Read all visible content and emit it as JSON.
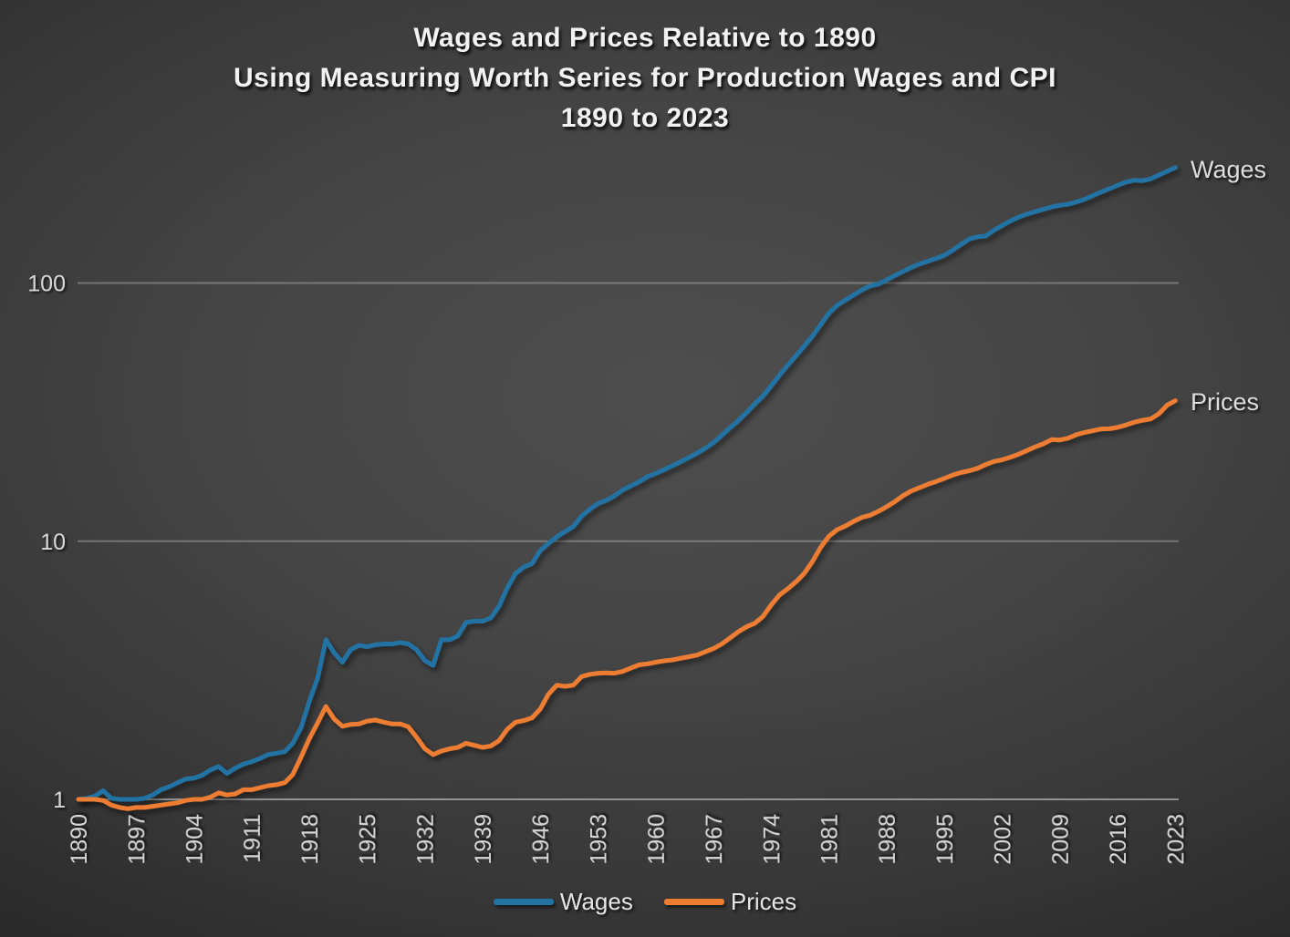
{
  "title": {
    "line1": "Wages and Prices Relative to 1890",
    "line2": "Using Measuring Worth Series for Production Wages and CPI",
    "line3": "1890 to 2023"
  },
  "colors": {
    "wages": "#2273A3",
    "prices": "#ED7D31",
    "tick_text": "#D6D6D6",
    "title_text": "#F2F2F2",
    "gridline": "rgba(255,255,255,0.28)",
    "baseline": "rgba(255,255,255,0.45)"
  },
  "legend": [
    {
      "label": "Wages",
      "color": "#2273A3"
    },
    {
      "label": "Prices",
      "color": "#ED7D31"
    }
  ],
  "series_end_labels": {
    "wages": "Wages",
    "prices": "Prices"
  },
  "chart_data": {
    "type": "line",
    "title": "Wages and Prices Relative to 1890 — Using Measuring Worth Series for Production Wages and CPI — 1890 to 2023",
    "xlabel": "",
    "ylabel": "",
    "y_scale": "log10",
    "ylim": [
      1,
      300
    ],
    "x_start": 1890,
    "x_end": 2023,
    "x_step_years": 1,
    "x_tick_labels": [
      "1890",
      "1897",
      "1904",
      "1911",
      "1918",
      "1925",
      "1932",
      "1939",
      "1946",
      "1953",
      "1960",
      "1967",
      "1974",
      "1981",
      "1988",
      "1995",
      "2002",
      "2009",
      "2016",
      "2023"
    ],
    "y_tick_labels": [
      "1",
      "10",
      "100"
    ],
    "y_gridlines": [
      1,
      10,
      100
    ],
    "legend_position": "bottom-center",
    "grid": "horizontal-only",
    "series": [
      {
        "name": "Wages",
        "color": "#2273A3",
        "values": [
          1.0,
          1.01,
          1.03,
          1.08,
          1.01,
          1.0,
          1.0,
          1.0,
          1.01,
          1.04,
          1.09,
          1.12,
          1.16,
          1.2,
          1.21,
          1.24,
          1.3,
          1.34,
          1.26,
          1.32,
          1.37,
          1.4,
          1.44,
          1.49,
          1.51,
          1.53,
          1.65,
          1.9,
          2.4,
          2.95,
          4.15,
          3.7,
          3.4,
          3.8,
          3.95,
          3.9,
          3.97,
          4.0,
          4.0,
          4.05,
          4.0,
          3.8,
          3.45,
          3.3,
          4.15,
          4.15,
          4.3,
          4.85,
          4.9,
          4.9,
          5.05,
          5.6,
          6.6,
          7.5,
          7.95,
          8.2,
          9.2,
          9.8,
          10.4,
          10.9,
          11.4,
          12.5,
          13.3,
          14.0,
          14.4,
          15.0,
          15.8,
          16.4,
          17.0,
          17.8,
          18.3,
          18.9,
          19.6,
          20.3,
          21.1,
          21.9,
          22.9,
          24.1,
          25.7,
          27.5,
          29.3,
          31.5,
          34.0,
          36.5,
          40.0,
          44.0,
          48.0,
          52.3,
          57.0,
          62.3,
          69.0,
          76.5,
          82.0,
          86.0,
          90.0,
          94.0,
          97.5,
          99.0,
          103,
          107,
          111,
          115,
          118.5,
          121.5,
          124.5,
          128,
          134,
          141,
          148,
          151,
          152,
          160,
          167,
          174,
          180,
          185,
          189,
          193,
          197,
          200,
          202,
          206,
          211,
          218,
          225,
          232,
          239,
          246,
          250,
          249,
          253,
          262,
          271,
          280
        ]
      },
      {
        "name": "Prices",
        "color": "#ED7D31",
        "values": [
          1.0,
          1.0,
          1.0,
          0.99,
          0.95,
          0.93,
          0.92,
          0.93,
          0.93,
          0.94,
          0.95,
          0.96,
          0.97,
          0.99,
          1.0,
          1.0,
          1.02,
          1.06,
          1.04,
          1.05,
          1.09,
          1.09,
          1.11,
          1.13,
          1.14,
          1.16,
          1.25,
          1.46,
          1.72,
          1.98,
          2.29,
          2.05,
          1.92,
          1.95,
          1.96,
          2.01,
          2.03,
          1.99,
          1.96,
          1.96,
          1.91,
          1.74,
          1.57,
          1.49,
          1.54,
          1.57,
          1.59,
          1.65,
          1.62,
          1.59,
          1.61,
          1.69,
          1.87,
          1.99,
          2.02,
          2.07,
          2.24,
          2.56,
          2.77,
          2.74,
          2.77,
          2.99,
          3.05,
          3.08,
          3.09,
          3.08,
          3.13,
          3.23,
          3.32,
          3.35,
          3.4,
          3.44,
          3.47,
          3.52,
          3.57,
          3.62,
          3.73,
          3.84,
          4.0,
          4.22,
          4.46,
          4.66,
          4.81,
          5.11,
          5.67,
          6.19,
          6.54,
          6.97,
          7.5,
          8.35,
          9.47,
          10.45,
          11.09,
          11.45,
          11.94,
          12.37,
          12.6,
          13.06,
          13.6,
          14.25,
          15.02,
          15.66,
          16.13,
          16.61,
          17.04,
          17.52,
          18.04,
          18.45,
          18.74,
          19.15,
          19.8,
          20.36,
          20.68,
          21.15,
          21.72,
          22.45,
          23.18,
          23.84,
          24.75,
          24.66,
          25.07,
          25.86,
          26.39,
          26.78,
          27.21,
          27.25,
          27.59,
          28.18,
          28.87,
          29.39,
          29.75,
          31.15,
          33.64,
          35.0
        ]
      }
    ]
  }
}
